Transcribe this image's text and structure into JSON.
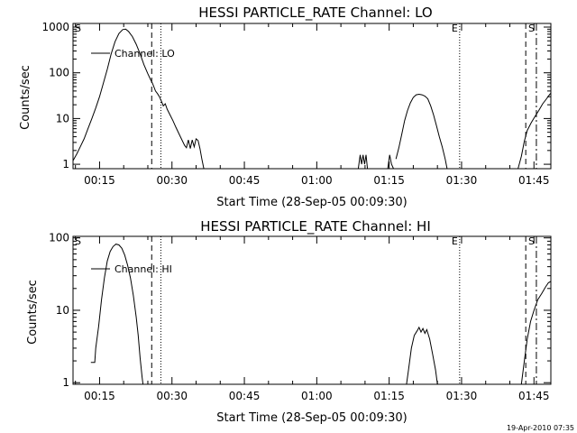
{
  "footer_timestamp": "19-Apr-2010 07:35",
  "chart_data": [
    {
      "type": "line",
      "title": "HESSI PARTICLE_RATE Channel: LO",
      "ylabel": "Counts/sec",
      "xlabel": "Start Time (28-Sep-05 00:09:30)",
      "x_units": "minutes after 00:00 UT",
      "x_range": [
        9.5,
        108.5
      ],
      "y_scale": "log",
      "y_range": [
        0.8,
        1200
      ],
      "x_ticks": [
        {
          "value": 15,
          "label": "00:15"
        },
        {
          "value": 30,
          "label": "00:30"
        },
        {
          "value": 45,
          "label": "00:45"
        },
        {
          "value": 60,
          "label": "01:00"
        },
        {
          "value": 75,
          "label": "01:15"
        },
        {
          "value": 90,
          "label": "01:30"
        },
        {
          "value": 105,
          "label": "01:45"
        }
      ],
      "y_ticks": [
        {
          "value": 1,
          "label": "1"
        },
        {
          "value": 10,
          "label": "10"
        },
        {
          "value": 100,
          "label": "100"
        },
        {
          "value": 1000,
          "label": "1000"
        }
      ],
      "legend": {
        "entries": [
          "Channel: LO"
        ],
        "placement": "top-left"
      },
      "markers": [
        {
          "label": "S",
          "x": 9.5,
          "style": "none"
        },
        {
          "label": "",
          "x": 25.8,
          "style": "dashed"
        },
        {
          "label": "",
          "x": 27.7,
          "style": "dotted"
        },
        {
          "label": "E",
          "x": 89.6,
          "style": "dotted"
        },
        {
          "label": "",
          "x": 103.3,
          "style": "dashed"
        },
        {
          "label": "S",
          "x": 105.5,
          "style": "dashdot"
        }
      ],
      "series": [
        {
          "segments": [
            [
              [
                9.5,
                1.2
              ],
              [
                10.3,
                1.7
              ],
              [
                11.0,
                2.4
              ],
              [
                11.8,
                3.6
              ],
              [
                12.6,
                6.0
              ],
              [
                13.4,
                10
              ],
              [
                14.2,
                17
              ],
              [
                15.0,
                30
              ],
              [
                15.8,
                60
              ],
              [
                16.6,
                120
              ],
              [
                17.4,
                260
              ],
              [
                18.2,
                480
              ],
              [
                19.0,
                720
              ],
              [
                19.8,
                880
              ],
              [
                20.4,
                900
              ],
              [
                21.0,
                800
              ],
              [
                21.8,
                620
              ],
              [
                22.6,
                420
              ],
              [
                23.4,
                260
              ],
              [
                24.2,
                150
              ],
              [
                25.0,
                95
              ],
              [
                25.6,
                70
              ],
              [
                26.0,
                58
              ],
              [
                26.6,
                40
              ],
              [
                27.0,
                35
              ],
              [
                27.4,
                30
              ],
              [
                27.8,
                24
              ],
              [
                28.2,
                19
              ],
              [
                28.6,
                21
              ],
              [
                29.0,
                16
              ],
              [
                29.6,
                12
              ],
              [
                30.2,
                9
              ],
              [
                30.8,
                6.5
              ],
              [
                31.4,
                4.8
              ],
              [
                32.0,
                3.5
              ],
              [
                32.6,
                2.6
              ],
              [
                33.0,
                2.3
              ],
              [
                33.4,
                3.4
              ],
              [
                33.8,
                2.2
              ],
              [
                34.2,
                3.4
              ],
              [
                34.6,
                2.4
              ],
              [
                35.0,
                3.6
              ],
              [
                35.4,
                3.3
              ],
              [
                35.8,
                2.2
              ],
              [
                36.2,
                1.3
              ],
              [
                36.6,
                0.8
              ]
            ],
            [
              [
                68.6,
                0.8
              ],
              [
                69.0,
                1.6
              ],
              [
                69.3,
                1.0
              ],
              [
                69.6,
                1.6
              ],
              [
                69.9,
                1.0
              ],
              [
                70.2,
                1.6
              ],
              [
                70.5,
                0.8
              ]
            ],
            [
              [
                74.7,
                0.8
              ],
              [
                75.1,
                1.6
              ],
              [
                75.5,
                1.0
              ],
              [
                75.9,
                0.8
              ]
            ],
            [
              [
                76.4,
                1.3
              ],
              [
                77.0,
                2.3
              ],
              [
                77.6,
                4.5
              ],
              [
                78.2,
                9
              ],
              [
                78.8,
                15
              ],
              [
                79.4,
                22
              ],
              [
                80.0,
                29
              ],
              [
                80.6,
                33
              ],
              [
                81.2,
                34
              ],
              [
                81.8,
                33
              ],
              [
                82.4,
                31
              ],
              [
                83.0,
                27
              ],
              [
                83.6,
                19
              ],
              [
                84.2,
                12
              ],
              [
                84.8,
                7
              ],
              [
                85.4,
                4
              ],
              [
                86.0,
                2.4
              ],
              [
                86.6,
                1.3
              ],
              [
                87.0,
                0.8
              ]
            ],
            [
              [
                101.7,
                0.8
              ],
              [
                102.4,
                1.5
              ],
              [
                103.0,
                3.2
              ],
              [
                103.6,
                5.5
              ],
              [
                104.4,
                8
              ],
              [
                105.2,
                11
              ],
              [
                106.0,
                15
              ],
              [
                106.8,
                21
              ],
              [
                107.6,
                27
              ],
              [
                108.2,
                33
              ],
              [
                108.5,
                36
              ]
            ]
          ]
        }
      ]
    },
    {
      "type": "line",
      "title": "HESSI PARTICLE_RATE Channel: HI",
      "ylabel": "Counts/sec",
      "xlabel": "Start Time (28-Sep-05 00:09:30)",
      "x_units": "minutes after 00:00 UT",
      "x_range": [
        9.5,
        108.5
      ],
      "y_scale": "log",
      "y_range": [
        0.95,
        105
      ],
      "x_ticks": [
        {
          "value": 15,
          "label": "00:15"
        },
        {
          "value": 30,
          "label": "00:30"
        },
        {
          "value": 45,
          "label": "00:45"
        },
        {
          "value": 60,
          "label": "01:00"
        },
        {
          "value": 75,
          "label": "01:15"
        },
        {
          "value": 90,
          "label": "01:30"
        },
        {
          "value": 105,
          "label": "01:45"
        }
      ],
      "y_ticks": [
        {
          "value": 1,
          "label": "1"
        },
        {
          "value": 10,
          "label": "10"
        },
        {
          "value": 100,
          "label": "100"
        }
      ],
      "legend": {
        "entries": [
          "Channel: HI"
        ],
        "placement": "top-left"
      },
      "markers": [
        {
          "label": "S",
          "x": 9.5,
          "style": "none"
        },
        {
          "label": "",
          "x": 25.8,
          "style": "dashed"
        },
        {
          "label": "",
          "x": 27.7,
          "style": "dotted"
        },
        {
          "label": "E",
          "x": 89.6,
          "style": "dotted"
        },
        {
          "label": "",
          "x": 103.3,
          "style": "dashed"
        },
        {
          "label": "S",
          "x": 105.5,
          "style": "dashdot"
        }
      ],
      "series": [
        {
          "segments": [
            [
              [
                13.2,
                1.9
              ],
              [
                14.0,
                1.9
              ],
              [
                14.2,
                3.0
              ],
              [
                14.8,
                6
              ],
              [
                15.4,
                14
              ],
              [
                16.0,
                28
              ],
              [
                16.6,
                48
              ],
              [
                17.2,
                65
              ],
              [
                17.8,
                76
              ],
              [
                18.4,
                82
              ],
              [
                19.0,
                80
              ],
              [
                19.6,
                72
              ],
              [
                20.2,
                58
              ],
              [
                20.8,
                42
              ],
              [
                21.4,
                28
              ],
              [
                22.0,
                16
              ],
              [
                22.6,
                8
              ],
              [
                23.0,
                4.5
              ],
              [
                23.4,
                2.2
              ],
              [
                23.8,
                1.2
              ],
              [
                24.0,
                0.95
              ]
            ],
            [
              [
                78.6,
                0.95
              ],
              [
                79.0,
                1.5
              ],
              [
                79.6,
                3.0
              ],
              [
                80.2,
                4.5
              ],
              [
                80.8,
                5.2
              ],
              [
                81.2,
                5.8
              ],
              [
                81.6,
                5.0
              ],
              [
                82.0,
                5.6
              ],
              [
                82.4,
                4.8
              ],
              [
                82.8,
                5.4
              ],
              [
                83.4,
                4.0
              ],
              [
                84.0,
                2.5
              ],
              [
                84.6,
                1.5
              ],
              [
                85.0,
                0.95
              ]
            ],
            [
              [
                102.4,
                0.95
              ],
              [
                103.0,
                2.0
              ],
              [
                103.6,
                4.0
              ],
              [
                104.3,
                7.0
              ],
              [
                105.0,
                10
              ],
              [
                105.8,
                14
              ],
              [
                106.6,
                17
              ],
              [
                107.4,
                21
              ],
              [
                108.0,
                24
              ],
              [
                108.5,
                25
              ]
            ]
          ]
        }
      ]
    }
  ]
}
